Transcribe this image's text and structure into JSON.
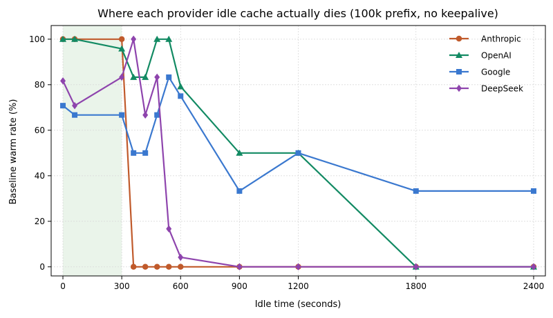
{
  "chart_data": {
    "type": "line",
    "title": "Where each provider idle cache actually dies (100k prefix, no keepalive)",
    "xlabel": "Idle time (seconds)",
    "ylabel": "Baseline warm rate (%)",
    "xlim": [
      -60,
      2460
    ],
    "ylim": [
      -4,
      106
    ],
    "xticks": [
      0,
      300,
      600,
      900,
      1200,
      1800,
      2400
    ],
    "yticks": [
      0,
      20,
      40,
      60,
      80,
      100
    ],
    "grid": true,
    "legend_position": "top-right",
    "shaded_region": {
      "x": [
        0,
        300
      ],
      "color": "#eaf4ea"
    },
    "series": [
      {
        "name": "Anthropic",
        "color": "#c05a2b",
        "marker": "circle",
        "x": [
          0,
          60,
          300,
          360,
          420,
          480,
          540,
          600,
          900,
          1200,
          1800,
          2400
        ],
        "values": [
          100,
          100,
          100,
          0,
          0,
          0,
          0,
          0,
          0,
          0,
          0,
          0
        ]
      },
      {
        "name": "OpenAI",
        "color": "#128a63",
        "marker": "triangle",
        "x": [
          0,
          60,
          300,
          360,
          420,
          480,
          540,
          600,
          900,
          1200,
          1800,
          2400
        ],
        "values": [
          100,
          100,
          95.8,
          83.3,
          83.3,
          100,
          100,
          79.2,
          50,
          50,
          0,
          0
        ]
      },
      {
        "name": "Google",
        "color": "#3a78cf",
        "marker": "square",
        "x": [
          0,
          60,
          300,
          360,
          420,
          480,
          540,
          600,
          900,
          1200,
          1800,
          2400
        ],
        "values": [
          70.8,
          66.7,
          66.7,
          50,
          50,
          66.7,
          83.3,
          75,
          33.3,
          50,
          33.3,
          33.3
        ]
      },
      {
        "name": "DeepSeek",
        "color": "#8e44ad",
        "marker": "diamond",
        "x": [
          0,
          60,
          300,
          360,
          420,
          480,
          540,
          600,
          900,
          1200,
          1800,
          2400
        ],
        "values": [
          81.7,
          70.8,
          83.3,
          100,
          66.7,
          83.3,
          16.7,
          4.2,
          0,
          0,
          0,
          0
        ]
      }
    ]
  }
}
